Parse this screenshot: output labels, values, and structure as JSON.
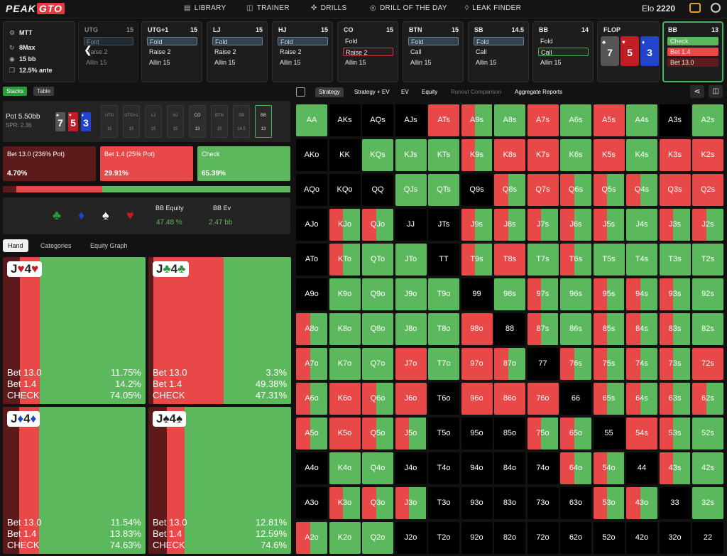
{
  "brand": {
    "a": "PEAK",
    "b": "GTO"
  },
  "nav": [
    "LIBRARY",
    "TRAINER",
    "DRILLS",
    "DRILL OF THE DAY",
    "LEAK FINDER"
  ],
  "elo": {
    "label": "Elo",
    "value": "2220"
  },
  "info": [
    "MTT",
    "8Max",
    "15 bb",
    "12.5% ante"
  ],
  "seats": [
    {
      "name": "UTG",
      "stack": "15",
      "acts": [
        "Fold",
        "Raise 2",
        "Allin 15"
      ],
      "style": [
        "fold",
        "",
        ""
      ],
      "dim": true
    },
    {
      "name": "UTG+1",
      "stack": "15",
      "acts": [
        "Fold",
        "Raise 2",
        "Allin 15"
      ],
      "style": [
        "fold",
        "",
        ""
      ]
    },
    {
      "name": "LJ",
      "stack": "15",
      "acts": [
        "Fold",
        "Raise 2",
        "Allin 15"
      ],
      "style": [
        "fold",
        "",
        ""
      ]
    },
    {
      "name": "HJ",
      "stack": "15",
      "acts": [
        "Fold",
        "Raise 2",
        "Allin 15"
      ],
      "style": [
        "fold",
        "",
        ""
      ]
    },
    {
      "name": "CO",
      "stack": "15",
      "acts": [
        "Fold",
        "Raise 2",
        "Allin 15"
      ],
      "style": [
        "",
        "red",
        ""
      ]
    },
    {
      "name": "BTN",
      "stack": "15",
      "acts": [
        "Fold",
        "Call",
        "Allin 15"
      ],
      "style": [
        "fold",
        "",
        ""
      ]
    },
    {
      "name": "SB",
      "stack": "14.5",
      "acts": [
        "Fold",
        "Call",
        "Allin 15"
      ],
      "style": [
        "fold",
        "",
        ""
      ]
    },
    {
      "name": "BB",
      "stack": "14",
      "acts": [
        "Fold",
        "Call",
        "Allin 15"
      ],
      "style": [
        "",
        "grn",
        ""
      ]
    }
  ],
  "flop": {
    "label": "FLOP",
    "cards": [
      {
        "rank": "7",
        "suit": "♣",
        "color": "#555"
      },
      {
        "rank": "5",
        "suit": "♥",
        "color": "#c01d24"
      },
      {
        "rank": "3",
        "suit": "♦",
        "color": "#2244cc"
      }
    ]
  },
  "bb_panel": {
    "name": "BB",
    "stack": "13",
    "acts": [
      "Check",
      "Bet 1.4",
      "Bet 13.0"
    ]
  },
  "left_tabs": [
    "Stacks",
    "Table"
  ],
  "pot": {
    "label": "Pot",
    "value": "5.50bb",
    "spr": "SPR: 2.36",
    "board": [
      "7",
      "5",
      "3"
    ]
  },
  "mini": [
    {
      "p": "UTG",
      "v": "15"
    },
    {
      "p": "UTG+1",
      "v": "15"
    },
    {
      "p": "LJ",
      "v": "15"
    },
    {
      "p": "HJ",
      "v": "15"
    },
    {
      "p": "CO",
      "v": "13"
    },
    {
      "p": "BTN",
      "v": "15"
    },
    {
      "p": "SB",
      "v": "14.5"
    },
    {
      "p": "BB",
      "v": "13"
    }
  ],
  "strategy": [
    {
      "label": "Bet 13.0 (236% Pot)",
      "pct": "4.70%",
      "color": "#5c1a1a"
    },
    {
      "label": "Bet 1.4 (25% Pot)",
      "pct": "29.91%",
      "color": "#e84848"
    },
    {
      "label": "Check",
      "pct": "65.39%",
      "color": "#5cb85c"
    }
  ],
  "freq": [
    0.047,
    0.2991,
    0.6539
  ],
  "equity": {
    "eq_label": "BB Equity",
    "eq": "47.48 %",
    "ev_label": "BB Ev",
    "ev": "2.47 bb"
  },
  "hand_tabs": [
    "Hand",
    "Categories",
    "Equity Graph"
  ],
  "hands": [
    {
      "r1": "J",
      "s1": "♥",
      "r2": "4",
      "s2": "♥",
      "sc": "#c01d24",
      "f": [
        0.1175,
        0.142,
        0.7405
      ],
      "rows": [
        [
          "Bet 13.0",
          "11.75%"
        ],
        [
          "Bet 1.4",
          "14.2%"
        ],
        [
          "CHECK",
          "74.05%"
        ]
      ]
    },
    {
      "r1": "J",
      "s1": "♣",
      "r2": "4",
      "s2": "♣",
      "sc": "#2a9a3a",
      "f": [
        0.033,
        0.4938,
        0.4731
      ],
      "rows": [
        [
          "Bet 13.0",
          "3.3%"
        ],
        [
          "Bet 1.4",
          "49.38%"
        ],
        [
          "CHECK",
          "47.31%"
        ]
      ]
    },
    {
      "r1": "J",
      "s1": "♦",
      "r2": "4",
      "s2": "♦",
      "sc": "#2244cc",
      "f": [
        0.1154,
        0.1383,
        0.7463
      ],
      "rows": [
        [
          "Bet 13.0",
          "11.54%"
        ],
        [
          "Bet 1.4",
          "13.83%"
        ],
        [
          "CHECK",
          "74.63%"
        ]
      ]
    },
    {
      "r1": "J",
      "s1": "♠",
      "r2": "4",
      "s2": "♠",
      "sc": "#222",
      "f": [
        0.1281,
        0.1259,
        0.746
      ],
      "rows": [
        [
          "Bet 13.0",
          "12.81%"
        ],
        [
          "Bet 1.4",
          "12.59%"
        ],
        [
          "CHECK",
          "74.6%"
        ]
      ]
    }
  ],
  "right_tabs": [
    "Strategy",
    "Strategy + EV",
    "EV",
    "Equity",
    "Runout Comparison",
    "Aggregate Reports"
  ],
  "ranks": [
    "A",
    "K",
    "Q",
    "J",
    "T",
    "9",
    "8",
    "7",
    "6",
    "5",
    "4",
    "3",
    "2"
  ],
  "matrix": [
    "GEEERMGRGRGEG",
    "EEGGGMRRGRGRR",
    "EEEGGEMRMMMRR",
    "EMMEEMMMMMGMM",
    "EMGGEMRGMGGGG",
    "EGGGGEGMGMMMG",
    "MGGGGREMGMMMG",
    "MGGRGRMEMMMMR",
    "MRMRERRREMMMM",
    "MRMMEEEMMERMG",
    "EGGEEEEEMMEMG",
    "EMMMEEEEEMMEG",
    "MGGEEEEEEEEEE"
  ]
}
